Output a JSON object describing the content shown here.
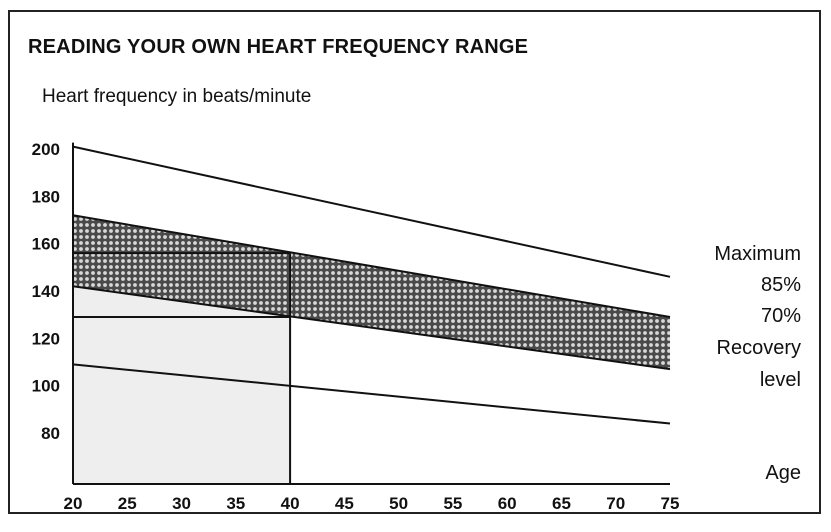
{
  "chart_data": {
    "type": "line",
    "title": "READING YOUR OWN HEART FREQUENCY RANGE",
    "ylabel": "Heart frequency in beats/minute",
    "xlabel": "Age",
    "x_ticks": [
      20,
      25,
      30,
      35,
      40,
      45,
      50,
      55,
      60,
      65,
      70,
      75
    ],
    "y_ticks": [
      80,
      100,
      120,
      140,
      160,
      180,
      200
    ],
    "xlim": [
      20,
      75
    ],
    "ylim": [
      60,
      205
    ],
    "series": [
      {
        "name": "Maximum",
        "x": [
          20,
          75
        ],
        "y": [
          201,
          146
        ]
      },
      {
        "name": "85%",
        "x": [
          20,
          75
        ],
        "y": [
          172,
          129
        ]
      },
      {
        "name": "70%",
        "x": [
          20,
          75
        ],
        "y": [
          142,
          107
        ]
      },
      {
        "name": "Recovery level",
        "x": [
          20,
          75
        ],
        "y": [
          109,
          84
        ]
      }
    ],
    "shaded_band": {
      "upper": "85%",
      "lower": "70%"
    },
    "example_reading": {
      "age": 40,
      "upper_bpm": 156,
      "lower_bpm": 129
    },
    "right_labels": [
      "Maximum",
      "85%",
      "70%",
      "Recovery",
      "level"
    ],
    "colors": {
      "line": "#111111",
      "band_fill": "#5a5a5a",
      "band_dots": "#d8d8d8",
      "example_fill": "#eeeeee"
    }
  }
}
